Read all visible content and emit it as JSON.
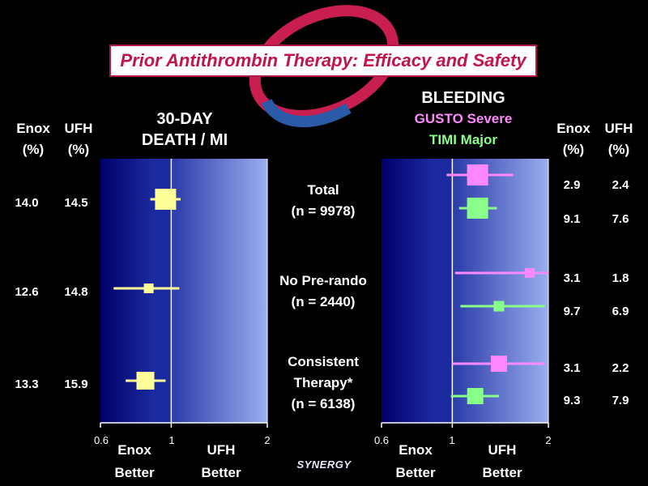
{
  "title": "Prior Antithrombin Therapy: Efficacy and Safety",
  "left_headers": {
    "enox": "Enox",
    "ufh": "UFH",
    "unit": "(%)"
  },
  "right_headers": {
    "enox": "Enox",
    "ufh": "UFH",
    "unit": "(%)"
  },
  "panel_left": {
    "line1": "30-DAY",
    "line2": "DEATH / MI"
  },
  "panel_right": {
    "line1": "BLEEDING",
    "line2": "GUSTO Severe",
    "line3": "TIMI Major"
  },
  "groups": [
    {
      "line1": "Total",
      "line2": "(n = 9978)",
      "line3": ""
    },
    {
      "line1": "No Pre-rando",
      "line2": "(n = 2440)",
      "line3": ""
    },
    {
      "line1": "Consistent",
      "line2": "Therapy*",
      "line3": "(n = 6138)"
    }
  ],
  "left_values": [
    {
      "enox": "14.0",
      "ufh": "14.5"
    },
    {
      "enox": "12.6",
      "ufh": "14.8"
    },
    {
      "enox": "13.3",
      "ufh": "15.9"
    }
  ],
  "right_values": [
    {
      "enox": "2.9",
      "ufh": "2.4"
    },
    {
      "enox": "9.1",
      "ufh": "7.6"
    },
    {
      "enox": "3.1",
      "ufh": "1.8"
    },
    {
      "enox": "9.7",
      "ufh": "6.9"
    },
    {
      "enox": "3.1",
      "ufh": "2.2"
    },
    {
      "enox": "9.3",
      "ufh": "7.9"
    }
  ],
  "axis_ticks": [
    "0.6",
    "1",
    "2"
  ],
  "better": {
    "enox": "Enox",
    "ufh": "UFH",
    "word": "Better"
  },
  "logo_text": "SYNERGY",
  "colors": {
    "death": "#ffff99",
    "gusto": "#ff88ff",
    "timi": "#88ff88",
    "title": "#c0144a"
  },
  "chart_data": [
    {
      "type": "forest",
      "title": "30-DAY DEATH / MI",
      "xscale": "log",
      "xlim": [
        0.6,
        2
      ],
      "ticks": [
        0.6,
        1,
        2
      ],
      "rows": [
        {
          "group": "Total",
          "estimate": 0.96,
          "low": 0.86,
          "high": 1.07
        },
        {
          "group": "No Pre-rando",
          "estimate": 0.85,
          "low": 0.66,
          "high": 1.06
        },
        {
          "group": "Consistent Therapy*",
          "estimate": 0.83,
          "low": 0.72,
          "high": 0.96
        }
      ]
    },
    {
      "type": "forest",
      "title": "BLEEDING",
      "xscale": "log",
      "xlim": [
        0.6,
        2
      ],
      "ticks": [
        0.6,
        1,
        2
      ],
      "series": [
        {
          "name": "GUSTO Severe",
          "rows": [
            {
              "group": "Total",
              "estimate": 1.2,
              "low": 0.96,
              "high": 1.55
            },
            {
              "group": "No Pre-rando",
              "estimate": 1.75,
              "low": 1.02,
              "high": 2.0
            },
            {
              "group": "Consistent Therapy*",
              "estimate": 1.4,
              "low": 1.0,
              "high": 1.95
            }
          ]
        },
        {
          "name": "TIMI Major",
          "rows": [
            {
              "group": "Total",
              "estimate": 1.2,
              "low": 1.05,
              "high": 1.38
            },
            {
              "group": "No Pre-rando",
              "estimate": 1.4,
              "low": 1.06,
              "high": 1.95
            },
            {
              "group": "Consistent Therapy*",
              "estimate": 1.18,
              "low": 0.99,
              "high": 1.4
            }
          ]
        }
      ]
    }
  ]
}
